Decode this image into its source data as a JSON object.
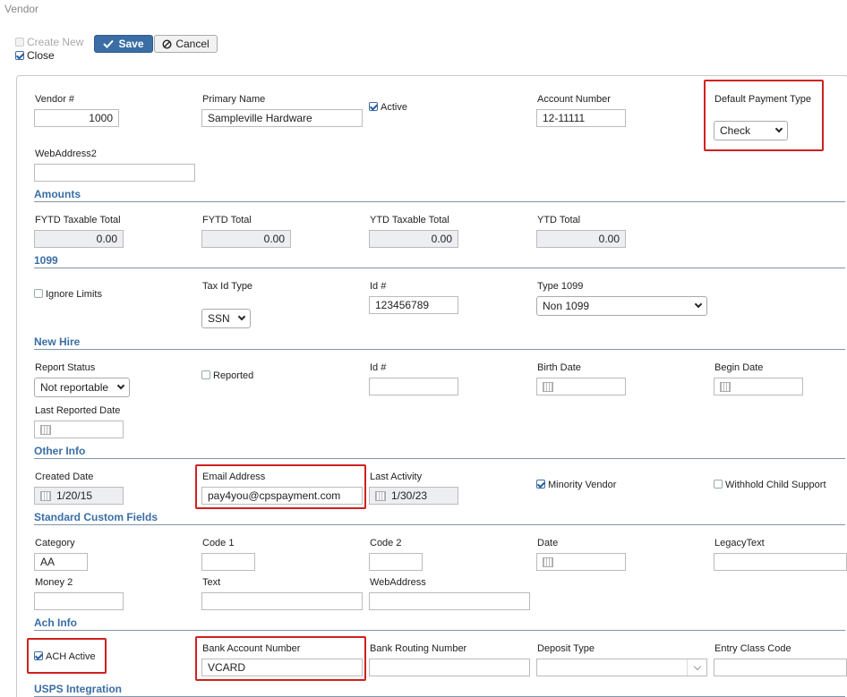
{
  "window": {
    "title": "Vendor"
  },
  "toolbar": {
    "create_new": "Create New",
    "close": "Close",
    "save": "Save",
    "cancel": "Cancel"
  },
  "general": {
    "vendor_num_label": "Vendor #",
    "vendor_num": "1000",
    "primary_name_label": "Primary Name",
    "primary_name": "Sampleville Hardware",
    "active_label": "Active",
    "account_number_label": "Account Number",
    "account_number": "12-11111",
    "default_payment_type_label": "Default Payment Type",
    "default_payment_type": "Check",
    "webaddress2_label": "WebAddress2",
    "webaddress2": ""
  },
  "amounts": {
    "heading": "Amounts",
    "fytd_taxable_label": "FYTD Taxable Total",
    "fytd_taxable": "0.00",
    "fytd_total_label": "FYTD Total",
    "fytd_total": "0.00",
    "ytd_taxable_label": "YTD Taxable Total",
    "ytd_taxable": "0.00",
    "ytd_total_label": "YTD Total",
    "ytd_total": "0.00"
  },
  "ten99": {
    "heading": "1099",
    "ignore_limits": "Ignore Limits",
    "tax_id_type_label": "Tax Id Type",
    "tax_id_type": "SSN",
    "id_label": "Id #",
    "id": "123456789",
    "type_1099_label": "Type 1099",
    "type_1099": "Non 1099"
  },
  "new_hire": {
    "heading": "New Hire",
    "report_status_label": "Report Status",
    "report_status": "Not reportable",
    "reported_label": "Reported",
    "id_label": "Id #",
    "id": "",
    "birth_date_label": "Birth Date",
    "begin_date_label": "Begin Date",
    "last_reported_date_label": "Last Reported Date"
  },
  "other_info": {
    "heading": "Other Info",
    "created_date_label": "Created Date",
    "created_date": "1/20/15",
    "email_label": "Email Address",
    "email": "pay4you@cpspayment.com",
    "last_activity_label": "Last Activity",
    "last_activity": "1/30/23",
    "minority_vendor_label": "Minority Vendor",
    "withhold_child_support_label": "Withhold Child Support"
  },
  "custom_fields": {
    "heading": "Standard Custom Fields",
    "category_label": "Category",
    "category": "AA",
    "code1_label": "Code 1",
    "code2_label": "Code 2",
    "date_label": "Date",
    "legacy_text_label": "LegacyText",
    "money2_label": "Money 2",
    "text_label": "Text",
    "webaddress_label": "WebAddress"
  },
  "ach": {
    "heading": "Ach Info",
    "ach_active_label": "ACH Active",
    "bank_account_number_label": "Bank Account Number",
    "bank_account_number": "VCARD",
    "bank_routing_number_label": "Bank Routing Number",
    "deposit_type_label": "Deposit Type",
    "entry_class_code_label": "Entry Class Code"
  },
  "usps": {
    "heading": "USPS Integration"
  },
  "colors": {
    "accent": "#3a6ea5",
    "highlight": "#d02020"
  }
}
